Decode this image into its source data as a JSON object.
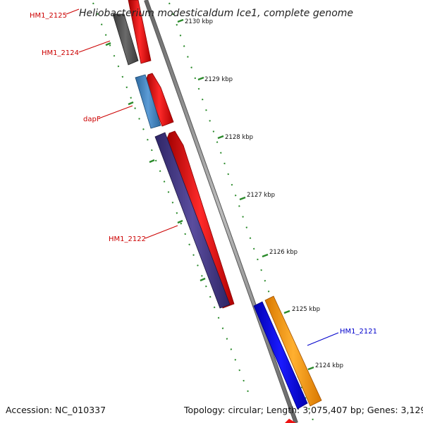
{
  "title": "Heliobacterium modesticaldum Ice1, complete genome",
  "footer": {
    "accession": "Accession: NC_010337",
    "topology": "Topology: circular; Length: 3,075,407 bp; Genes: 3,129"
  },
  "ticks": [
    {
      "label": "2130 kbp"
    },
    {
      "label": "2129 kbp"
    },
    {
      "label": "2128 kbp"
    },
    {
      "label": "2127 kbp"
    },
    {
      "label": "2126 kbp"
    },
    {
      "label": "2125 kbp"
    },
    {
      "label": "2124 kbp"
    }
  ],
  "genes": [
    {
      "name": "HM1_2125",
      "color": "#cc0000"
    },
    {
      "name": "HM1_2124",
      "color": "#cc0000"
    },
    {
      "name": "dapF",
      "color": "#cc0000"
    },
    {
      "name": "HM1_2122",
      "color": "#cc0000"
    },
    {
      "name": "HM1_2121",
      "color": "#0000cc"
    }
  ],
  "colors": {
    "forward_cds": "#ee1111",
    "reverse_cds": "#0a0aee",
    "orange": "#ff9900",
    "gray": "#555555",
    "steelblue": "#4a86c0",
    "purple": "#4b3d8a",
    "backbone": "#888888",
    "tick": "#2a8a2a"
  }
}
